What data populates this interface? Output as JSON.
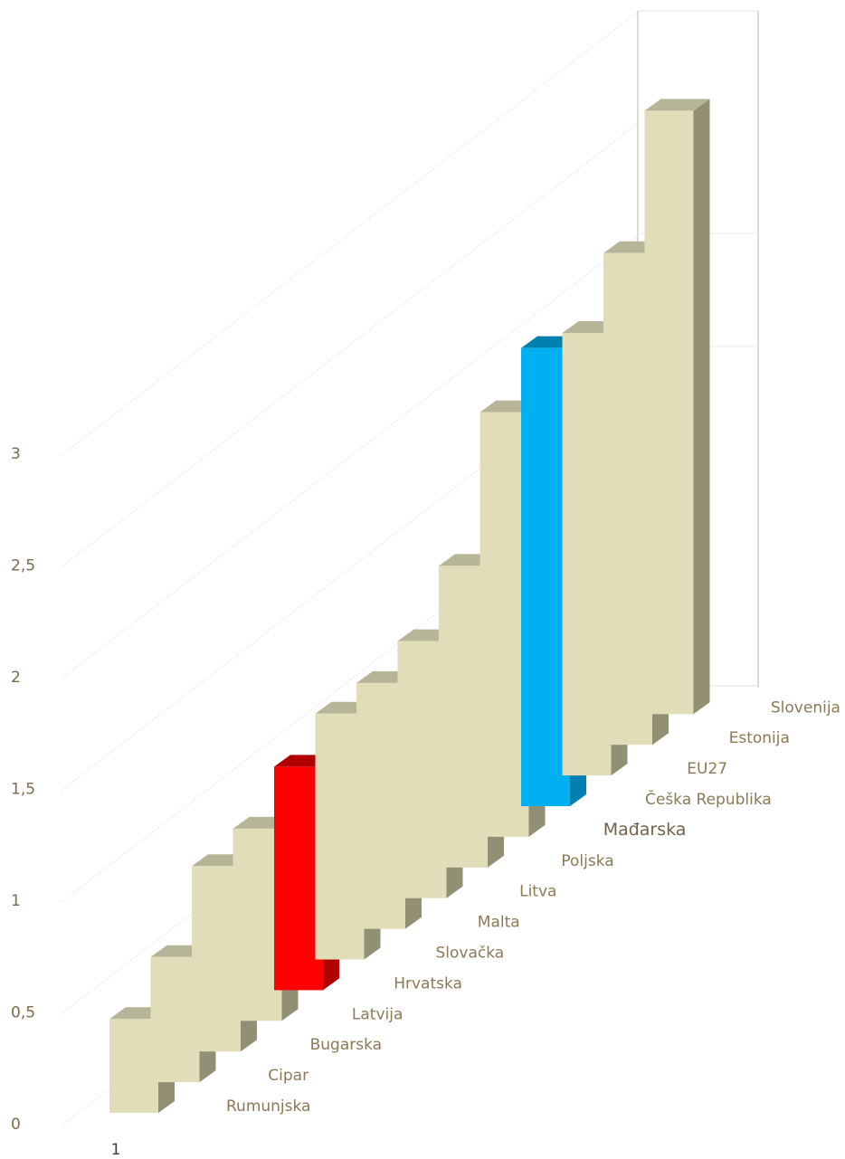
{
  "chart_data": {
    "type": "bar",
    "title": "",
    "xlabel": "",
    "ylabel": "",
    "ylim": [
      0,
      3.7
    ],
    "y_ticks": [
      {
        "value": 0,
        "label": "0"
      },
      {
        "value": 0.5,
        "label": "0,5"
      },
      {
        "value": 1,
        "label": "1"
      },
      {
        "value": 1.5,
        "label": "1,5"
      },
      {
        "value": 2,
        "label": "2"
      },
      {
        "value": 2.5,
        "label": "2,5"
      },
      {
        "value": 3,
        "label": "3"
      }
    ],
    "x_tick_label": "1",
    "grid": true,
    "style": "3d-column",
    "colors": {
      "default_front": "#e0ddb8",
      "default_side": "#919074",
      "default_top": "#b7b597",
      "highlight_red": "#ff0000",
      "highlight_red_side": "#b00000",
      "highlight_blue": "#00b0f0",
      "highlight_blue_side": "#0080b0"
    },
    "categories": [
      "Rumunjska",
      "Cipar",
      "Bugarska",
      "Latvija",
      "Hrvatska",
      "Slovačka",
      "Malta",
      "Litva",
      "Poljska",
      "Mađarska",
      "Češka Republika",
      "EU27",
      "Estonija",
      "Slovenija"
    ],
    "values": [
      0.42,
      0.56,
      0.83,
      0.86,
      1.0,
      1.1,
      1.1,
      1.15,
      1.35,
      1.9,
      2.05,
      1.98,
      2.2,
      2.7
    ],
    "highlight": {
      "Hrvatska": "red",
      "Češka Republika": "blue"
    },
    "emphasized_labels": [
      "Mađarska"
    ]
  }
}
